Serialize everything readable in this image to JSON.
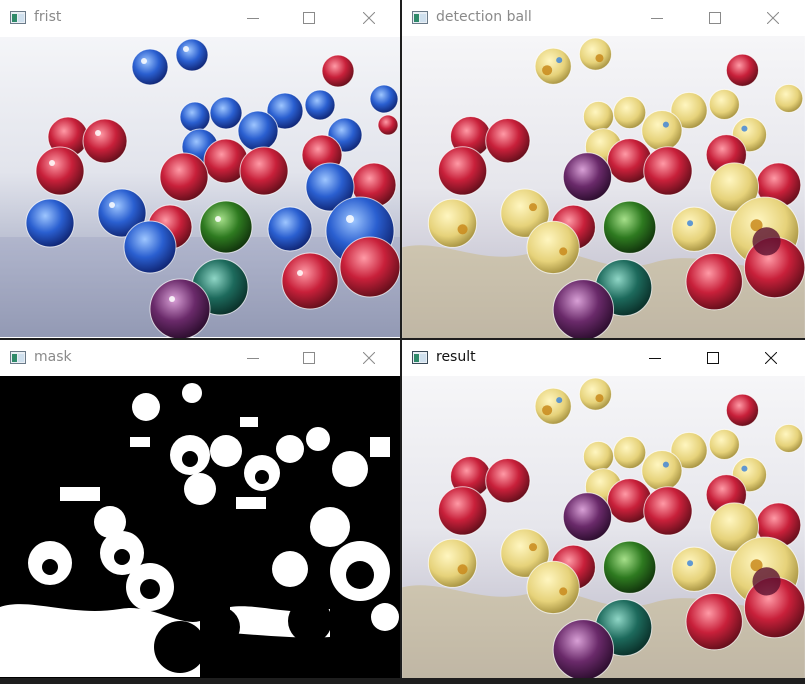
{
  "windows": [
    {
      "id": "frist",
      "title": "frist",
      "state": "inactive"
    },
    {
      "id": "detection",
      "title": "detection ball",
      "state": "inactive"
    },
    {
      "id": "mask",
      "title": "mask",
      "state": "inactive"
    },
    {
      "id": "result",
      "title": "result",
      "state": "active"
    }
  ],
  "controls": {
    "minimize_icon": "minimize-icon",
    "maximize_icon": "maximize-icon",
    "close_icon": "close-icon"
  },
  "colors": {
    "title_inactive": "#8a8a8a",
    "title_active": "#111111",
    "desktop": "#1e1e1e"
  }
}
